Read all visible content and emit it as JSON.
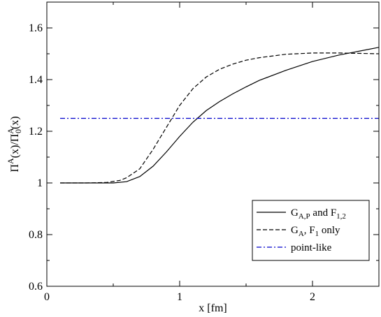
{
  "chart_data": {
    "type": "line",
    "title": "",
    "xlabel": "x [fm]",
    "ylabel_parts": {
      "main1": "Π",
      "sup1": "A",
      "mid1": "(x)/Π",
      "sup2": "A",
      "sub2": "0",
      "tail": "(x)"
    },
    "xlim": [
      0,
      2.5
    ],
    "ylim": [
      0.6,
      1.7
    ],
    "x_ticks": [
      0,
      1,
      2
    ],
    "x_tick_labels": [
      "0",
      "1",
      "2"
    ],
    "y_ticks": [
      0.6,
      0.8,
      1.0,
      1.2,
      1.4,
      1.6
    ],
    "y_tick_labels": [
      "0.6",
      "0.8",
      "1",
      "1.2",
      "1.4",
      "1.6"
    ],
    "grid": false,
    "legend_position": "bottom-right",
    "series": [
      {
        "legend_parts": {
          "a": "G",
          "a_sub": "A,P",
          "b": " and F",
          "b_sub": "1,2",
          "c": ""
        },
        "style": "solid",
        "color": "#000000",
        "x": [
          0.1,
          0.3,
          0.5,
          0.6,
          0.7,
          0.8,
          0.9,
          1.0,
          1.1,
          1.2,
          1.3,
          1.4,
          1.5,
          1.6,
          1.8,
          2.0,
          2.2,
          2.4,
          2.5
        ],
        "y": [
          1.0,
          1.0,
          1.0,
          1.005,
          1.025,
          1.065,
          1.12,
          1.18,
          1.235,
          1.28,
          1.315,
          1.345,
          1.372,
          1.397,
          1.436,
          1.47,
          1.495,
          1.515,
          1.525
        ]
      },
      {
        "legend_parts": {
          "a": "G",
          "a_sub": "A",
          "b": ", F",
          "b_sub": "1",
          "c": " only"
        },
        "style": "dashed",
        "color": "#000000",
        "x": [
          0.1,
          0.3,
          0.45,
          0.55,
          0.6,
          0.7,
          0.8,
          0.9,
          1.0,
          1.1,
          1.2,
          1.3,
          1.4,
          1.5,
          1.6,
          1.8,
          2.0,
          2.2,
          2.5
        ],
        "y": [
          1.0,
          1.0,
          1.002,
          1.01,
          1.02,
          1.055,
          1.13,
          1.215,
          1.3,
          1.365,
          1.41,
          1.44,
          1.46,
          1.475,
          1.485,
          1.498,
          1.503,
          1.503,
          1.5
        ]
      },
      {
        "legend_parts": {
          "a": "point-like",
          "a_sub": "",
          "b": "",
          "b_sub": "",
          "c": ""
        },
        "style": "dashdot",
        "color": "#0000cc",
        "x": [
          0.1,
          2.5
        ],
        "y": [
          1.25,
          1.25
        ]
      }
    ]
  }
}
